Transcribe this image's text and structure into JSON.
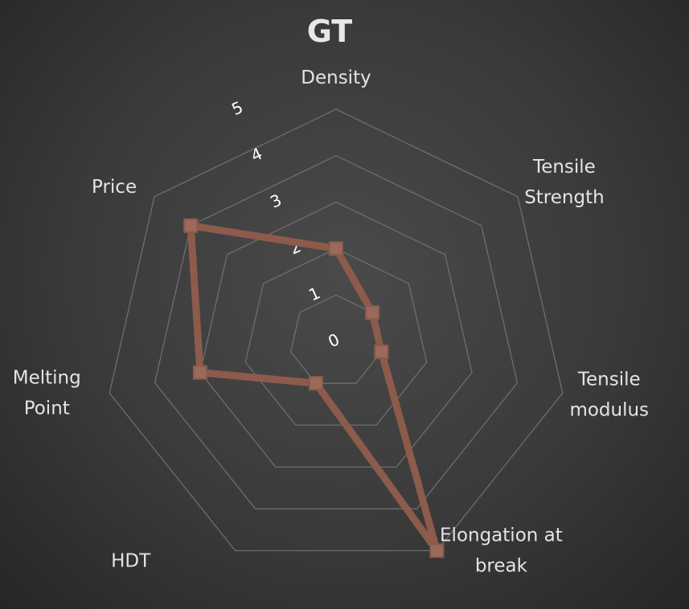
{
  "chart_data": {
    "type": "radar",
    "title": "GT",
    "categories": [
      "Density",
      "Tensile Strength",
      "Tensile modulus",
      "Elongation at break",
      "HDT",
      "Melting Point",
      "Price"
    ],
    "category_lines": [
      [
        "Density"
      ],
      [
        "Tensile",
        "Strength"
      ],
      [
        "Tensile",
        "modulus"
      ],
      [
        "Elongation at",
        "break"
      ],
      [
        "HDT"
      ],
      [
        "Melting",
        "Point"
      ],
      [
        "Price"
      ]
    ],
    "series": [
      {
        "values": [
          2,
          1,
          1,
          5,
          1,
          3,
          4
        ],
        "color": "#8c5b4b"
      }
    ],
    "rlim": [
      0,
      5
    ],
    "ticks": [
      "0",
      "1",
      "2",
      "3",
      "4",
      "5"
    ],
    "grid": true,
    "legend": "none",
    "colors": {
      "grid": "#6e6e6e",
      "text": "#e4e4e4"
    }
  }
}
